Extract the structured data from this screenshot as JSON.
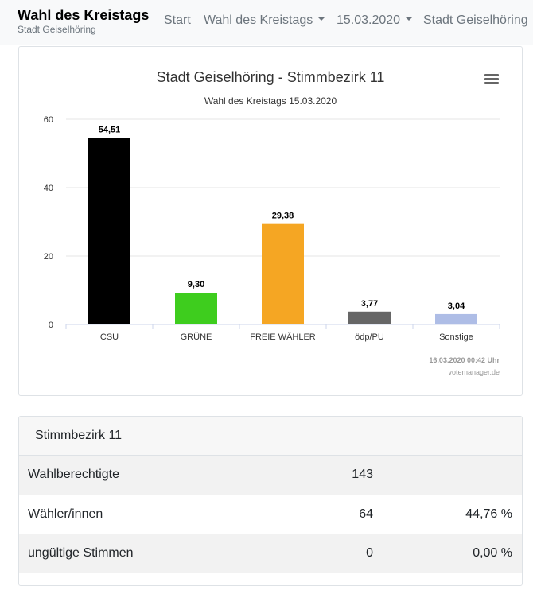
{
  "navbar": {
    "brand_title": "Wahl des Kreistags",
    "brand_subtitle": "Stadt Geiselhöring",
    "links": [
      "Start",
      "Wahl des Kreistags",
      "15.03.2020",
      "Stadt Geiselhöring"
    ]
  },
  "chart_data": {
    "type": "bar",
    "title": "Stadt Geiselhöring - Stimmbezirk 11",
    "subtitle": "Wahl des Kreistags 15.03.2020",
    "categories": [
      "CSU",
      "GRÜNE",
      "FREIE WÄHLER",
      "ödp/PU",
      "Sonstige"
    ],
    "values": [
      54.51,
      9.3,
      29.38,
      3.77,
      3.04
    ],
    "value_labels": [
      "54,51",
      "9,30",
      "29,38",
      "3,77",
      "3,04"
    ],
    "colors": [
      "#000000",
      "#3ecd1e",
      "#f5a623",
      "#666666",
      "#aebde6"
    ],
    "ylim": [
      0,
      60
    ],
    "yticks": [
      "0",
      "20",
      "40",
      "60"
    ],
    "grid": true,
    "credit_time": "16.03.2020 00:42 Uhr",
    "credit_source": "votemanager.de"
  },
  "table": {
    "header": "Stimmbezirk 11",
    "rows": [
      {
        "label": "Wahlberechtigte",
        "value": "143",
        "percent": ""
      },
      {
        "label": "Wähler/innen",
        "value": "64",
        "percent": "44,76 %"
      },
      {
        "label": "ungültige Stimmen",
        "value": "0",
        "percent": "0,00 %"
      }
    ]
  }
}
